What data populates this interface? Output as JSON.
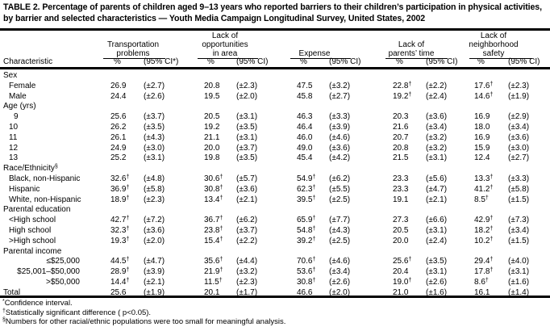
{
  "title": "TABLE 2. Percentage of parents of children aged 9–13 years who reported barriers to their children’s participation in physical activities, by barrier and selected characteristics — Youth Media Campaign Longitudinal Survey, United States, 2002",
  "header": {
    "characteristic": "Characteristic",
    "groups": [
      {
        "line1": "",
        "line2": "Transportation",
        "line3": "problems",
        "pct": "%",
        "ci": "(95% CI*)"
      },
      {
        "line1": "Lack of",
        "line2": "opportunities",
        "line3": "in area",
        "pct": "%",
        "ci": "(95% CI)"
      },
      {
        "line1": "",
        "line2": "",
        "line3": "Expense",
        "pct": "%",
        "ci": "(95% CI)"
      },
      {
        "line1": "",
        "line2": "Lack of",
        "line3": "parents’ time",
        "pct": "%",
        "ci": "(95% CI)"
      },
      {
        "line1": "Lack of",
        "line2": "neighborhood",
        "line3": "safety",
        "pct": "%",
        "ci": "(95% CI)"
      }
    ]
  },
  "dagger": "†",
  "rows": [
    {
      "label": "Sex",
      "section": true
    },
    {
      "label": "Female",
      "indent": 1,
      "cells": [
        [
          "26.9",
          false,
          "(±2.7)"
        ],
        [
          "20.8",
          false,
          "(±2.3)"
        ],
        [
          "47.5",
          false,
          "(±3.2)"
        ],
        [
          "22.8",
          true,
          "(±2.2)"
        ],
        [
          "17.6",
          true,
          "(±2.3)"
        ]
      ]
    },
    {
      "label": "Male",
      "indent": 1,
      "cells": [
        [
          "24.4",
          false,
          "(±2.6)"
        ],
        [
          "19.5",
          false,
          "(±2.0)"
        ],
        [
          "45.8",
          false,
          "(±2.7)"
        ],
        [
          "19.2",
          true,
          "(±2.4)"
        ],
        [
          "14.6",
          true,
          "(±1.9)"
        ]
      ]
    },
    {
      "label": "Age (yrs)",
      "section": true
    },
    {
      "label": "9",
      "indent": 2,
      "cells": [
        [
          "25.6",
          false,
          "(±3.7)"
        ],
        [
          "20.5",
          false,
          "(±3.1)"
        ],
        [
          "46.3",
          false,
          "(±3.3)"
        ],
        [
          "20.3",
          false,
          "(±3.6)"
        ],
        [
          "16.9",
          false,
          "(±2.9)"
        ]
      ]
    },
    {
      "label": "10",
      "indent": 1,
      "cells": [
        [
          "26.2",
          false,
          "(±3.5)"
        ],
        [
          "19.2",
          false,
          "(±3.5)"
        ],
        [
          "46.4",
          false,
          "(±3.9)"
        ],
        [
          "21.6",
          false,
          "(±3.4)"
        ],
        [
          "18.0",
          false,
          "(±3.4)"
        ]
      ]
    },
    {
      "label": "11",
      "indent": 1,
      "cells": [
        [
          "26.1",
          false,
          "(±4.3)"
        ],
        [
          "21.1",
          false,
          "(±3.1)"
        ],
        [
          "46.0",
          false,
          "(±4.6)"
        ],
        [
          "20.7",
          false,
          "(±3.2)"
        ],
        [
          "16.9",
          false,
          "(±3.6)"
        ]
      ]
    },
    {
      "label": "12",
      "indent": 1,
      "cells": [
        [
          "24.9",
          false,
          "(±3.0)"
        ],
        [
          "20.0",
          false,
          "(±3.7)"
        ],
        [
          "49.0",
          false,
          "(±3.6)"
        ],
        [
          "20.8",
          false,
          "(±3.2)"
        ],
        [
          "15.9",
          false,
          "(±3.0)"
        ]
      ]
    },
    {
      "label": "13",
      "indent": 1,
      "cells": [
        [
          "25.2",
          false,
          "(±3.1)"
        ],
        [
          "19.8",
          false,
          "(±3.5)"
        ],
        [
          "45.4",
          false,
          "(±4.2)"
        ],
        [
          "21.5",
          false,
          "(±3.1)"
        ],
        [
          "12.4",
          false,
          "(±2.7)"
        ]
      ]
    },
    {
      "label": "Race/Ethnicity",
      "mark": "§",
      "section": true
    },
    {
      "label": "Black, non-Hispanic",
      "indent": 1,
      "cells": [
        [
          "32.6",
          true,
          "(±4.8)"
        ],
        [
          "30.6",
          true,
          "(±5.7)"
        ],
        [
          "54.9",
          true,
          "(±6.2)"
        ],
        [
          "23.3",
          false,
          "(±5.6)"
        ],
        [
          "13.3",
          true,
          "(±3.3)"
        ]
      ]
    },
    {
      "label": "Hispanic",
      "indent": 1,
      "cells": [
        [
          "36.9",
          true,
          "(±5.8)"
        ],
        [
          "30.8",
          true,
          "(±3.6)"
        ],
        [
          "62.3",
          true,
          "(±5.5)"
        ],
        [
          "23.3",
          false,
          "(±4.7)"
        ],
        [
          "41.2",
          true,
          "(±5.8)"
        ]
      ]
    },
    {
      "label": "White, non-Hispanic",
      "indent": 1,
      "cells": [
        [
          "18.9",
          true,
          "(±2.3)"
        ],
        [
          "13.4",
          true,
          "(±2.1)"
        ],
        [
          "39.5",
          true,
          "(±2.5)"
        ],
        [
          "19.1",
          false,
          "(±2.1)"
        ],
        [
          "8.5",
          true,
          "(±1.5)"
        ]
      ]
    },
    {
      "label": "Parental education",
      "section": true
    },
    {
      "label": "<High school",
      "indent": 1,
      "cells": [
        [
          "42.7",
          true,
          "(±7.2)"
        ],
        [
          "36.7",
          true,
          "(±6.2)"
        ],
        [
          "65.9",
          true,
          "(±7.7)"
        ],
        [
          "27.3",
          false,
          "(±6.6)"
        ],
        [
          "42.9",
          true,
          "(±7.3)"
        ]
      ]
    },
    {
      "label": "High school",
      "indent": 1,
      "cells": [
        [
          "32.3",
          true,
          "(±3.6)"
        ],
        [
          "23.8",
          true,
          "(±3.7)"
        ],
        [
          "54.8",
          true,
          "(±4.3)"
        ],
        [
          "20.5",
          false,
          "(±3.1)"
        ],
        [
          "18.2",
          true,
          "(±3.4)"
        ]
      ]
    },
    {
      "label": ">High school",
      "indent": 1,
      "cells": [
        [
          "19.3",
          true,
          "(±2.0)"
        ],
        [
          "15.4",
          true,
          "(±2.2)"
        ],
        [
          "39.2",
          true,
          "(±2.5)"
        ],
        [
          "20.0",
          false,
          "(±2.4)"
        ],
        [
          "10.2",
          true,
          "(±1.5)"
        ]
      ]
    },
    {
      "label": "Parental income",
      "section": true
    },
    {
      "label": "≤$25,000",
      "indent": "r",
      "cells": [
        [
          "44.5",
          true,
          "(±4.7)"
        ],
        [
          "35.6",
          true,
          "(±4.4)"
        ],
        [
          "70.6",
          true,
          "(±4.6)"
        ],
        [
          "25.6",
          true,
          "(±3.5)"
        ],
        [
          "29.4",
          true,
          "(±4.0)"
        ]
      ]
    },
    {
      "label": "$25,001–$50,000",
      "indent": "r",
      "cells": [
        [
          "28.9",
          true,
          "(±3.9)"
        ],
        [
          "21.9",
          true,
          "(±3.2)"
        ],
        [
          "53.6",
          true,
          "(±3.4)"
        ],
        [
          "20.4",
          false,
          "(±3.1)"
        ],
        [
          "17.8",
          true,
          "(±3.1)"
        ]
      ]
    },
    {
      "label": ">$50,000",
      "indent": "r",
      "cells": [
        [
          "14.4",
          true,
          "(±2.1)"
        ],
        [
          "11.5",
          true,
          "(±2.3)"
        ],
        [
          "30.8",
          true,
          "(±2.6)"
        ],
        [
          "19.0",
          true,
          "(±2.6)"
        ],
        [
          "8.6",
          true,
          "(±1.6)"
        ]
      ]
    },
    {
      "label": "Total",
      "cells": [
        [
          "25.6",
          false,
          "(±1.9)"
        ],
        [
          "20.1",
          false,
          "(±1.7)"
        ],
        [
          "46.6",
          false,
          "(±2.0)"
        ],
        [
          "21.0",
          false,
          "(±1.6)"
        ],
        [
          "16.1",
          false,
          "(±1.4)"
        ]
      ]
    }
  ],
  "footnotes": [
    {
      "mark": "*",
      "text": "Confidence interval."
    },
    {
      "mark": "†",
      "text": "Statistically significant difference ( p<0.05)."
    },
    {
      "mark": "§",
      "text": "Numbers for other racial/ethnic populations were too small for meaningful analysis."
    }
  ]
}
